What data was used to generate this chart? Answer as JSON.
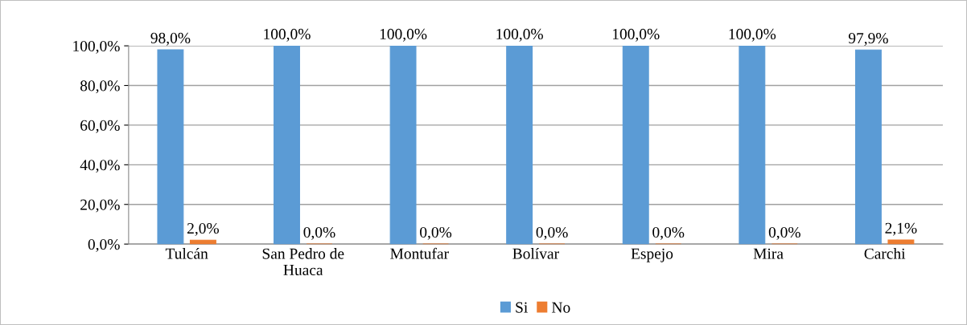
{
  "chart_data": {
    "type": "bar",
    "categories": [
      "Tulcán",
      "San Pedro de\nHuaca",
      "Montufar",
      "Bolívar",
      "Espejo",
      "Mira",
      "Carchi"
    ],
    "series": [
      {
        "name": "Si",
        "color": "#5b9bd5",
        "values": [
          98.0,
          100.0,
          100.0,
          100.0,
          100.0,
          100.0,
          97.9
        ],
        "value_labels": [
          "98,0%",
          "100,0%",
          "100,0%",
          "100,0%",
          "100,0%",
          "100,0%",
          "97,9%"
        ]
      },
      {
        "name": "No",
        "color": "#ed7d31",
        "values": [
          2.0,
          0.0,
          0.0,
          0.0,
          0.0,
          0.0,
          2.1
        ],
        "value_labels": [
          "2,0%",
          "0,0%",
          "0,0%",
          "0,0%",
          "0,0%",
          "0,0%",
          "2,1%"
        ]
      }
    ],
    "ylim": [
      0,
      100
    ],
    "yticks": [
      {
        "value": 0,
        "label": "0,0%"
      },
      {
        "value": 20,
        "label": "20,0%"
      },
      {
        "value": 40,
        "label": "40,0%"
      },
      {
        "value": 60,
        "label": "60,0%"
      },
      {
        "value": 80,
        "label": "80,0%"
      },
      {
        "value": 100,
        "label": "100,0%"
      }
    ],
    "grid": "y",
    "legend": "bottom"
  }
}
